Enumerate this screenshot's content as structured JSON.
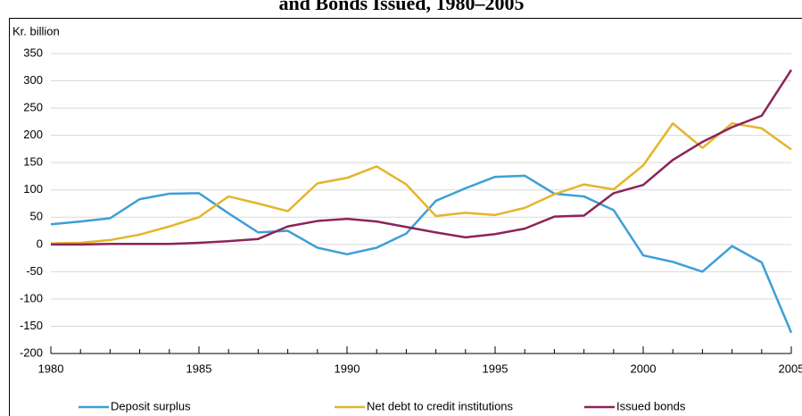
{
  "chart_data": {
    "type": "line",
    "title": "and Bonds Issued, 1980–2005",
    "y_label": "Kr. billion",
    "x": [
      1980,
      1981,
      1982,
      1983,
      1984,
      1985,
      1986,
      1987,
      1988,
      1989,
      1990,
      1991,
      1992,
      1993,
      1994,
      1995,
      1996,
      1997,
      1998,
      1999,
      2000,
      2001,
      2002,
      2003,
      2004,
      2005
    ],
    "series": [
      {
        "name": "Deposit surplus",
        "color": "#3d9fd6",
        "values": [
          37,
          42,
          48,
          83,
          93,
          94,
          57,
          22,
          25,
          -6,
          -18,
          -6,
          20,
          80,
          103,
          124,
          126,
          93,
          88,
          63,
          -20,
          -32,
          -50,
          -3,
          -33,
          -162
        ]
      },
      {
        "name": "Net debt to credit institutions",
        "color": "#e4b52a",
        "values": [
          2,
          3,
          8,
          18,
          33,
          50,
          88,
          75,
          61,
          112,
          122,
          143,
          110,
          52,
          58,
          54,
          67,
          92,
          110,
          101,
          145,
          222,
          177,
          222,
          213,
          174
        ]
      },
      {
        "name": "Issued bonds",
        "color": "#8c2458",
        "values": [
          0,
          0,
          1,
          1,
          1,
          3,
          6,
          10,
          33,
          43,
          47,
          42,
          32,
          22,
          13,
          19,
          29,
          51,
          53,
          94,
          109,
          155,
          188,
          215,
          236,
          320
        ]
      }
    ],
    "xlim": [
      1980,
      2005
    ],
    "xticks": [
      1980,
      1985,
      1990,
      1995,
      2000,
      2005
    ],
    "ylim": [
      -200,
      350
    ],
    "yticks": [
      -200,
      -150,
      -100,
      -50,
      0,
      50,
      100,
      150,
      200,
      250,
      300,
      350
    ],
    "grid": true,
    "legend": "bottom"
  }
}
